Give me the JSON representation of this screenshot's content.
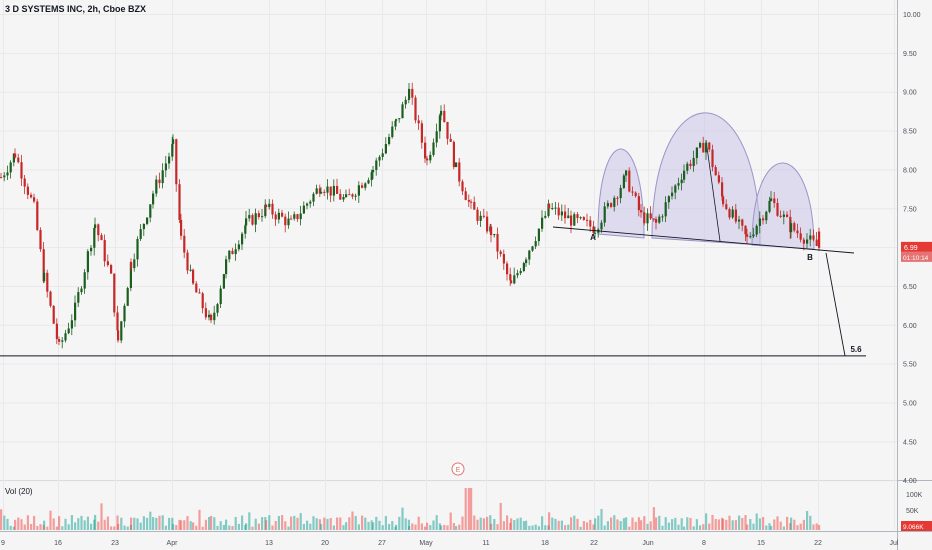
{
  "header": {
    "title": "3 D SYSTEMS INC, 2h, Cboe BZX"
  },
  "volume_panel": {
    "label": "Vol (20)",
    "axis_ticks": [
      "100K",
      "50K"
    ],
    "current_volume": "9.066K"
  },
  "price_badge": {
    "price": "6.99",
    "countdown": "01:10:14"
  },
  "earnings_marker": {
    "label": "E"
  },
  "pattern": {
    "point_a": "A",
    "point_b": "B",
    "target_label": "5.6"
  },
  "colors": {
    "background": "#f5f5f5",
    "up": "#26a69a",
    "candle_up": "#1b5e20",
    "down": "#ef5350",
    "candle_down": "#c62828",
    "pattern_fill": "#c8c4e6",
    "pattern_stroke": "#9b95c9",
    "line": "#131722",
    "earnings": "#e57373"
  },
  "chart_data": {
    "type": "candlestick",
    "title": "3 D SYSTEMS INC, 2h, Cboe BZX",
    "y_axis_ticks": [
      "10.00",
      "9.50",
      "9.00",
      "8.50",
      "8.00",
      "7.50",
      "7.00",
      "6.50",
      "6.00",
      "5.50",
      "5.00",
      "4.50",
      "4.00"
    ],
    "ylim": [
      4.0,
      10.1
    ],
    "x_axis_ticks": [
      "9",
      "16",
      "23",
      "Apr",
      "13",
      "20",
      "27",
      "May",
      "11",
      "18",
      "22",
      "Jun",
      "8",
      "15",
      "22",
      "Jul"
    ],
    "approx_close_path": [
      {
        "x": "9",
        "close": 7.9
      },
      {
        "x": "10",
        "close": 8.2
      },
      {
        "x": "13",
        "close": 7.5
      },
      {
        "x": "15",
        "close": 6.6
      },
      {
        "x": "16",
        "close": 5.7
      },
      {
        "x": "17",
        "close": 6.2
      },
      {
        "x": "18",
        "close": 7.3
      },
      {
        "x": "19",
        "close": 6.6
      },
      {
        "x": "23",
        "close": 5.8
      },
      {
        "x": "24",
        "close": 6.8
      },
      {
        "x": "26",
        "close": 7.7
      },
      {
        "x": "27",
        "close": 8.3
      },
      {
        "x": "30",
        "close": 7.1
      },
      {
        "x": "31",
        "close": 6.5
      },
      {
        "x": "Apr",
        "close": 6.0
      },
      {
        "x": "3",
        "close": 6.8
      },
      {
        "x": "6",
        "close": 7.3
      },
      {
        "x": "9",
        "close": 7.5
      },
      {
        "x": "13",
        "close": 7.3
      },
      {
        "x": "15",
        "close": 7.8
      },
      {
        "x": "20",
        "close": 7.6
      },
      {
        "x": "22",
        "close": 8.0
      },
      {
        "x": "27",
        "close": 8.6
      },
      {
        "x": "29",
        "close": 9.0
      },
      {
        "x": "May",
        "close": 8.1
      },
      {
        "x": "4",
        "close": 8.8
      },
      {
        "x": "6",
        "close": 8.0
      },
      {
        "x": "11",
        "close": 7.5
      },
      {
        "x": "13",
        "close": 7.2
      },
      {
        "x": "14",
        "close": 6.5
      },
      {
        "x": "15",
        "close": 6.9
      },
      {
        "x": "18",
        "close": 7.5
      },
      {
        "x": "20",
        "close": 7.35
      },
      {
        "x": "22",
        "close": 7.25
      },
      {
        "x": "27",
        "close": 7.9
      },
      {
        "x": "28",
        "close": 7.4
      },
      {
        "x": "Jun",
        "close": 7.3
      },
      {
        "x": "3",
        "close": 8.0
      },
      {
        "x": "8",
        "close": 8.35
      },
      {
        "x": "10",
        "close": 7.6
      },
      {
        "x": "15",
        "close": 7.1
      },
      {
        "x": "17",
        "close": 7.6
      },
      {
        "x": "19",
        "close": 7.25
      },
      {
        "x": "22",
        "close": 6.99
      }
    ],
    "horizontal_line": {
      "price": 5.6,
      "label": "5.6"
    },
    "neckline": {
      "from_label": "A",
      "to_label": "B",
      "start_price": 7.25,
      "end_price": 6.93
    },
    "target": {
      "label": "5.6",
      "price": 5.6
    },
    "last_price": 6.99,
    "volume_ylim": [
      0,
      120000
    ],
    "grid": true,
    "legend": "none"
  }
}
